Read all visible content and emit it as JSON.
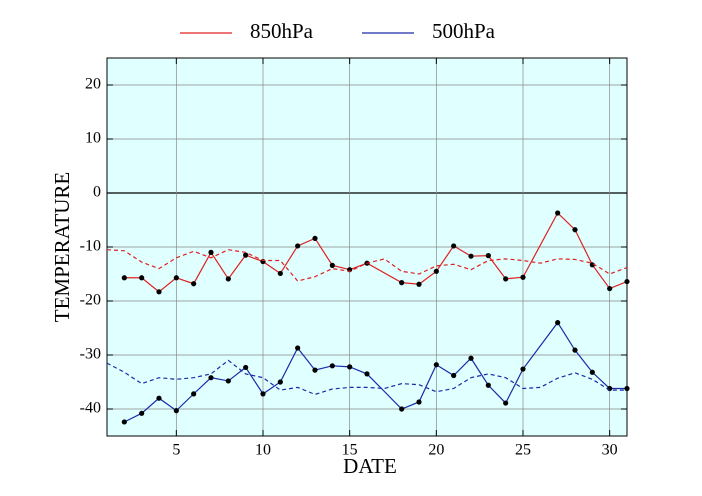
{
  "chart_data": {
    "type": "line",
    "xlabel": "DATE",
    "ylabel": "TEMPERATURE",
    "xlim": [
      1,
      31
    ],
    "ylim": [
      -45,
      25
    ],
    "xticks": [
      5,
      10,
      15,
      20,
      25,
      30
    ],
    "yticks": [
      -40,
      -30,
      -20,
      -10,
      0,
      10,
      20
    ],
    "grid": true,
    "legend": "top",
    "series": [
      {
        "name": "850hPa",
        "color": "#e02020",
        "markers": true,
        "dashed": false,
        "x": [
          2,
          3,
          4,
          5,
          6,
          7,
          8,
          9,
          10,
          11,
          12,
          13,
          14,
          15,
          16,
          18,
          19,
          20,
          21,
          22,
          23,
          24,
          25,
          27,
          28,
          29,
          30,
          31
        ],
        "values": [
          -15.7,
          -15.7,
          -18.3,
          -15.7,
          -16.8,
          -11,
          -15.9,
          -11.5,
          -12.7,
          -14.9,
          -9.8,
          -8.4,
          -13.4,
          -14.2,
          -13,
          -16.6,
          -16.9,
          -14.5,
          -9.8,
          -11.7,
          -11.6,
          -15.9,
          -15.6,
          -3.7,
          -6.8,
          -13.3,
          -17.7,
          -16.4
        ]
      },
      {
        "name": "500hPa",
        "color": "#1a2aa8",
        "markers": true,
        "dashed": false,
        "x": [
          2,
          3,
          4,
          5,
          6,
          7,
          8,
          9,
          10,
          11,
          12,
          13,
          14,
          15,
          16,
          18,
          19,
          20,
          21,
          22,
          23,
          24,
          25,
          27,
          28,
          29,
          30,
          31
        ],
        "values": [
          -42.4,
          -40.8,
          -38,
          -40.3,
          -37.2,
          -34.2,
          -34.8,
          -32.3,
          -37.2,
          -35,
          -28.7,
          -32.8,
          -32,
          -32.2,
          -33.5,
          -40,
          -38.7,
          -31.8,
          -33.8,
          -30.6,
          -35.6,
          -38.9,
          -32.6,
          -24,
          -29.1,
          -33.2,
          -36.2,
          -36.2
        ]
      },
      {
        "color": "#e02020",
        "markers": false,
        "dashed": true,
        "x": [
          1,
          2,
          3,
          4,
          5,
          6,
          7,
          8,
          9,
          10,
          11,
          12,
          13,
          14,
          15,
          16,
          17,
          18,
          19,
          20,
          21,
          22,
          23,
          24,
          25,
          26,
          27,
          28,
          29,
          30,
          31
        ],
        "values": [
          -10.5,
          -10.7,
          -12.8,
          -14,
          -12,
          -10.8,
          -12,
          -10.5,
          -11,
          -12.5,
          -12.5,
          -16.3,
          -15.5,
          -14,
          -14.5,
          -13,
          -12.2,
          -14.5,
          -15,
          -13.5,
          -13.2,
          -14.2,
          -12.5,
          -12.2,
          -12.5,
          -13,
          -12.2,
          -12.3,
          -13,
          -15,
          -13.8
        ]
      },
      {
        "color": "#1a2aa8",
        "markers": false,
        "dashed": true,
        "x": [
          1,
          2,
          3,
          4,
          5,
          6,
          7,
          8,
          9,
          10,
          11,
          12,
          13,
          14,
          15,
          16,
          17,
          18,
          19,
          20,
          21,
          22,
          23,
          24,
          25,
          26,
          27,
          28,
          29,
          30,
          31
        ],
        "values": [
          -31.5,
          -33.2,
          -35.3,
          -34.2,
          -34.5,
          -34.2,
          -33.5,
          -31,
          -33.5,
          -34.2,
          -36.5,
          -36,
          -37.3,
          -36.3,
          -36,
          -36,
          -36.2,
          -35.3,
          -35.5,
          -36.8,
          -36.2,
          -34.2,
          -33.5,
          -34.2,
          -36.2,
          -36,
          -34.3,
          -33.3,
          -34.5,
          -36.5,
          -36.5
        ]
      }
    ]
  }
}
